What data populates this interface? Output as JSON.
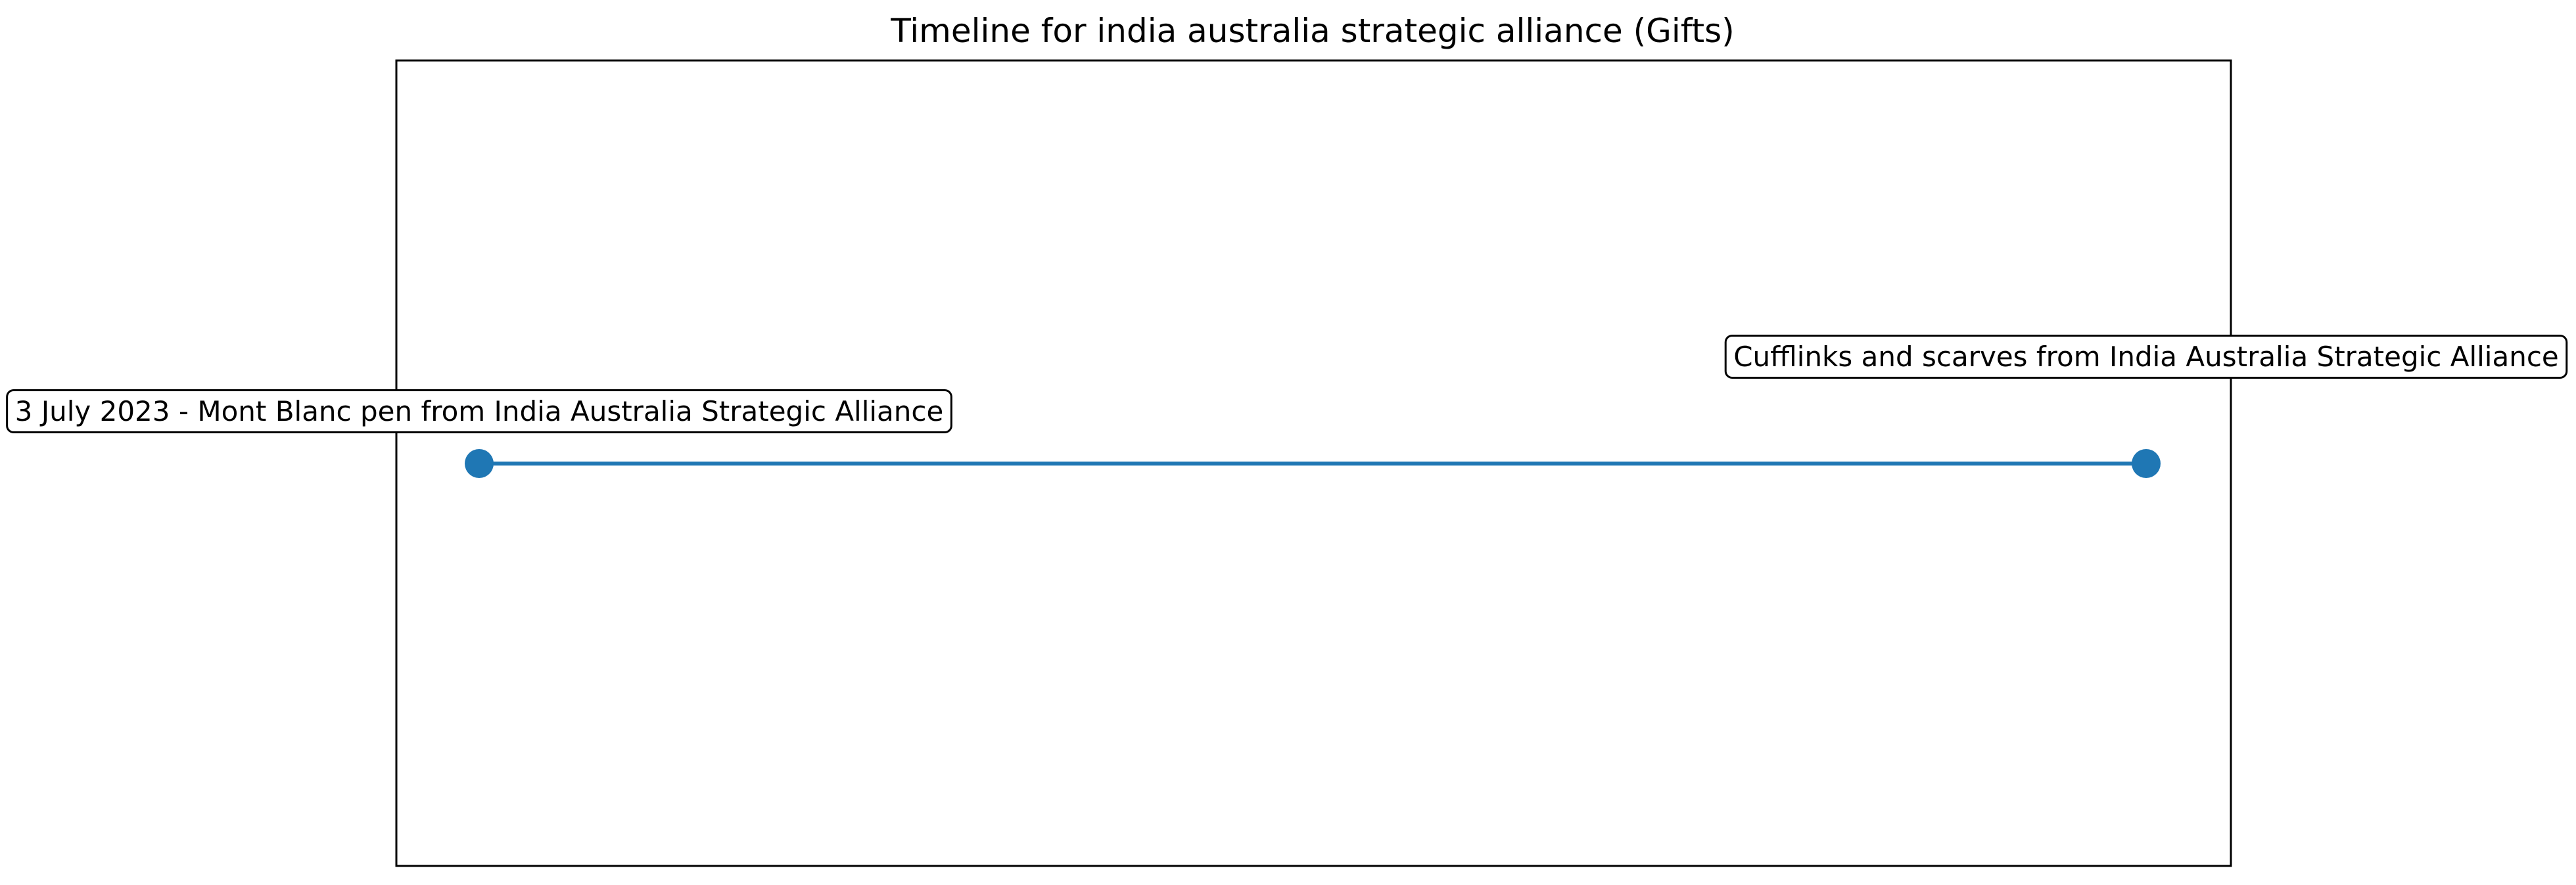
{
  "chart_data": {
    "type": "line",
    "title": "Timeline for india australia strategic alliance (Gifts)",
    "xlabel": "",
    "ylabel": "",
    "grid": false,
    "axes_visible": false,
    "colors": {
      "series": "#1f77b4",
      "frame": "#000000",
      "label_box_fill": "#ffffff",
      "label_box_edge": "#000000"
    },
    "events": [
      {
        "order": 0,
        "label": "3 July 2023 - Mont Blanc pen from India Australia Strategic Alliance"
      },
      {
        "order": 1,
        "label": "Cufflinks and scarves from India Australia Strategic Alliance"
      }
    ]
  }
}
